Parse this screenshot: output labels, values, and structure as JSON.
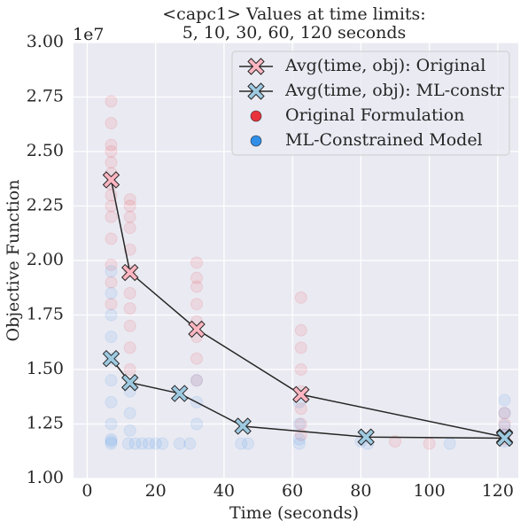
{
  "chart_data": {
    "type": "combo",
    "title": [
      "<capc1> Values at time limits:",
      "5, 10, 30, 60, 120 seconds"
    ],
    "x_label": "Time (seconds)",
    "y_label": "Objective Function",
    "y_offset_label": "1e7",
    "xlim": [
      -4,
      126
    ],
    "ylim": [
      1.0,
      3.0
    ],
    "xticks": [
      0,
      20,
      40,
      60,
      80,
      100,
      120
    ],
    "yticks": [
      {
        "value": 1.0,
        "label": "1.00"
      },
      {
        "value": 1.25,
        "label": "1.25"
      },
      {
        "value": 1.5,
        "label": "1.50"
      },
      {
        "value": 1.75,
        "label": "1.75"
      },
      {
        "value": 2.0,
        "label": "2.00"
      },
      {
        "value": 2.25,
        "label": "2.25"
      },
      {
        "value": 2.5,
        "label": "2.50"
      },
      {
        "value": 2.75,
        "label": "2.75"
      },
      {
        "value": 3.0,
        "label": "3.00"
      }
    ],
    "grid": true,
    "legend": "upper right",
    "series": [
      {
        "name": "Original Formulation",
        "type": "scatter",
        "color": "#e8323c",
        "x": [
          7,
          7,
          7,
          7,
          7,
          7,
          7,
          7,
          7,
          7,
          7,
          7,
          7,
          7,
          12.5,
          12.5,
          12.5,
          12.5,
          12.5,
          12.5,
          12.5,
          12.5,
          12.5,
          12.5,
          12.5,
          32,
          32,
          32,
          32,
          32,
          32,
          32,
          32,
          62.5,
          62.5,
          62.5,
          62.5,
          62.5,
          62.5,
          62.5,
          62.5,
          122,
          122,
          122,
          122,
          90,
          100
        ],
        "values": [
          2.73,
          2.63,
          2.53,
          2.5,
          2.45,
          2.4,
          2.35,
          2.3,
          2.25,
          2.2,
          2.1,
          1.98,
          1.9,
          1.8,
          2.28,
          2.25,
          2.2,
          2.15,
          2.05,
          1.95,
          1.85,
          1.78,
          1.7,
          1.6,
          1.5,
          1.99,
          1.92,
          1.88,
          1.8,
          1.72,
          1.65,
          1.55,
          1.45,
          1.83,
          1.68,
          1.6,
          1.5,
          1.4,
          1.32,
          1.25,
          1.2,
          1.3,
          1.25,
          1.2,
          1.18,
          1.17,
          1.16
        ]
      },
      {
        "name": "ML-Constrained Model",
        "type": "scatter",
        "color": "#2e8ee8",
        "x": [
          7,
          7,
          7,
          7,
          7,
          7,
          7,
          7,
          7,
          7,
          7,
          12,
          14,
          16,
          18,
          20,
          22,
          12.5,
          12.5,
          12.5,
          27,
          30,
          32,
          32,
          32,
          45,
          47,
          62,
          62,
          62,
          62,
          80,
          82,
          106,
          122,
          122,
          122,
          122,
          122
        ],
        "values": [
          1.95,
          1.85,
          1.75,
          1.65,
          1.55,
          1.45,
          1.35,
          1.25,
          1.18,
          1.17,
          1.16,
          1.16,
          1.16,
          1.16,
          1.16,
          1.16,
          1.16,
          1.4,
          1.3,
          1.22,
          1.16,
          1.16,
          1.45,
          1.35,
          1.25,
          1.16,
          1.16,
          1.35,
          1.25,
          1.18,
          1.16,
          1.17,
          1.16,
          1.16,
          1.36,
          1.3,
          1.24,
          1.2,
          1.17
        ]
      },
      {
        "name": "Avg(time, obj): Original",
        "type": "line",
        "color": "#ffb6c1",
        "x": [
          7,
          12.5,
          32,
          62.5,
          122
        ],
        "values": [
          2.37,
          1.945,
          1.685,
          1.385,
          1.19
        ]
      },
      {
        "name": "Avg(time, obj): ML-constr",
        "type": "line",
        "color": "#9ecae1",
        "x": [
          7,
          12.5,
          27,
          45.5,
          81.5,
          122
        ],
        "values": [
          1.55,
          1.44,
          1.39,
          1.24,
          1.19,
          1.185
        ]
      }
    ]
  }
}
